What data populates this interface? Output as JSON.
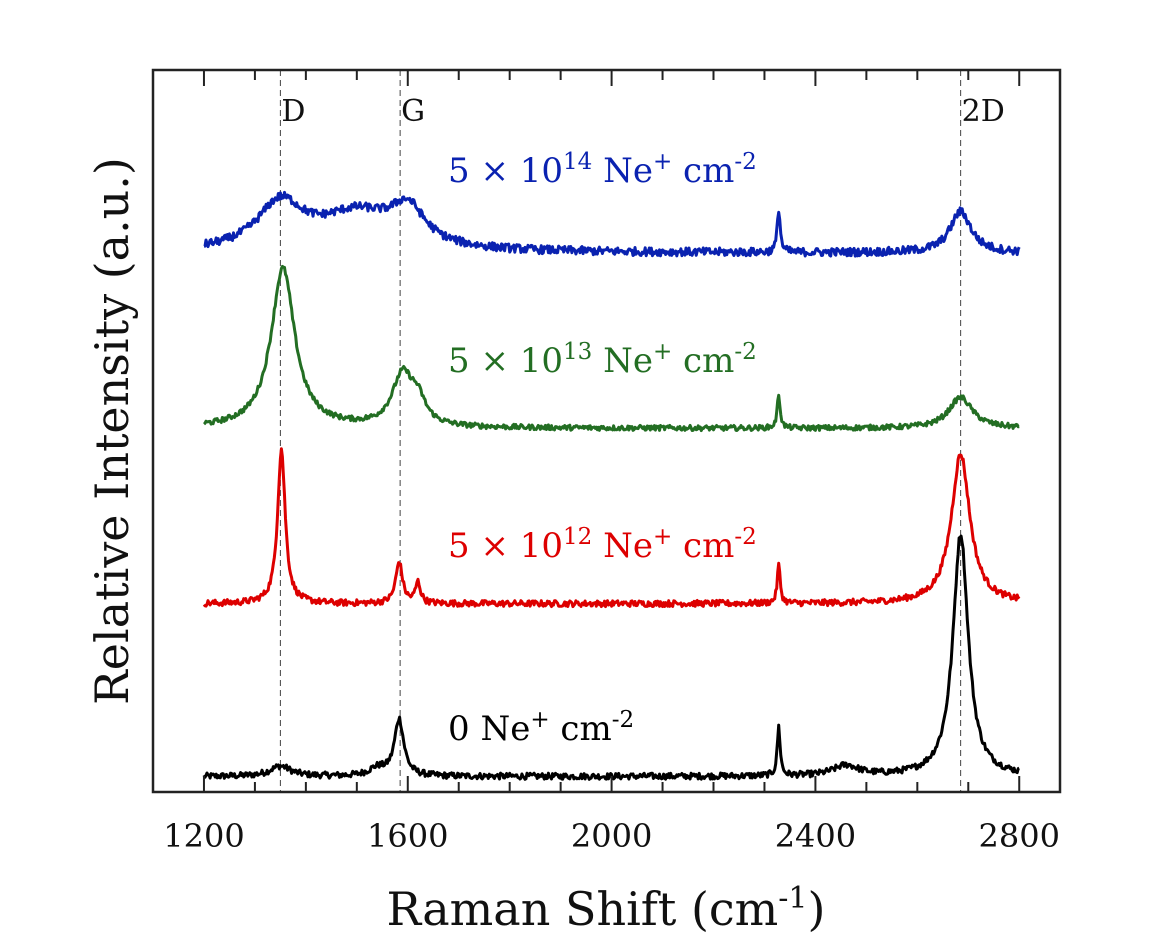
{
  "chart_data": {
    "type": "line",
    "xlabel": {
      "main": "Raman Shift (cm",
      "sup": "-1",
      "close": ")"
    },
    "ylabel": "Relative Intensity (a.u.)",
    "xlim": [
      1100,
      2880
    ],
    "ylim": [
      0,
      1.4
    ],
    "x_ticks": [
      1200,
      1600,
      2000,
      2400,
      2800
    ],
    "x_tick_labels": [
      "1200",
      "1600",
      "2000",
      "2400",
      "2800"
    ],
    "x_minor_step": 100,
    "grid": false,
    "reference_lines": [
      {
        "label": "D",
        "x": 1350
      },
      {
        "label": "G",
        "x": 1585
      },
      {
        "label": "2D",
        "x": 2685
      }
    ],
    "series": [
      {
        "name": {
          "pre": "0 Ne",
          "sup1": "+",
          "mid": " cm",
          "sup2": "-2"
        },
        "color": "#000000",
        "baseline": 0.03,
        "noise": 0.006,
        "peaks": [
          [
            1350,
            0.02,
            25
          ],
          [
            1540,
            0.015,
            20
          ],
          [
            1583,
            0.11,
            11
          ],
          [
            2328,
            0.095,
            3.5
          ],
          [
            2460,
            0.02,
            30
          ],
          [
            2685,
            0.47,
            18
          ]
        ]
      },
      {
        "name": {
          "pre": "5 × 10",
          "supA": "12",
          "mid1": " Ne",
          "sup1": "+",
          "mid": " cm",
          "sup2": "-2"
        },
        "color": "#dd0000",
        "baseline": 0.365,
        "noise": 0.006,
        "peaks": [
          [
            1352,
            0.3,
            9
          ],
          [
            1583,
            0.08,
            8
          ],
          [
            1620,
            0.04,
            6
          ],
          [
            2328,
            0.075,
            3.5
          ],
          [
            2685,
            0.29,
            22
          ]
        ]
      },
      {
        "name": {
          "pre": "5 × 10",
          "supA": "13",
          "mid1": " Ne",
          "sup1": "+",
          "mid": " cm",
          "sup2": "-2"
        },
        "color": "#236e23",
        "baseline": 0.705,
        "noise": 0.005,
        "peaks": [
          [
            1355,
            0.31,
            28
          ],
          [
            1590,
            0.1,
            25
          ],
          [
            1620,
            0.04,
            18
          ],
          [
            2328,
            0.065,
            3.5
          ],
          [
            2685,
            0.06,
            28
          ]
        ]
      },
      {
        "name": {
          "pre": "5 × 10",
          "supA": "14",
          "mid1": " Ne",
          "sup1": "+",
          "mid": " cm",
          "sup2": "-2"
        },
        "color": "#0a22b0",
        "baseline": 1.045,
        "noise": 0.008,
        "peaks": [
          [
            1350,
            0.09,
            55
          ],
          [
            1500,
            0.07,
            90
          ],
          [
            1600,
            0.07,
            40
          ],
          [
            2328,
            0.085,
            3.5
          ],
          [
            2685,
            0.08,
            25
          ]
        ]
      }
    ]
  }
}
